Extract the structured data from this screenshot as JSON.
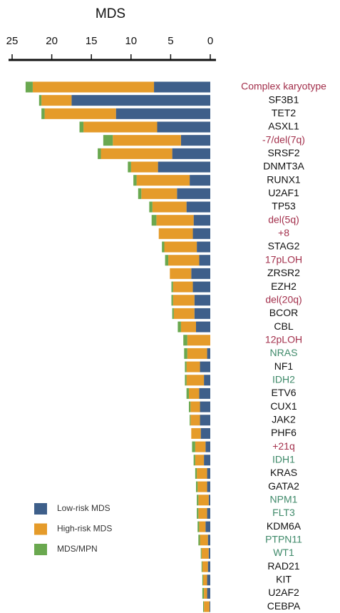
{
  "chart_data": {
    "type": "stacked_barh",
    "title": "MDS",
    "categories": [
      "Complex karyotype",
      "SF3B1",
      "TET2",
      "ASXL1",
      "-7/del(7q)",
      "SRSF2",
      "DNMT3A",
      "RUNX1",
      "U2AF1",
      "TP53",
      "del(5q)",
      "+8",
      "STAG2",
      "17pLOH",
      "ZRSR2",
      "EZH2",
      "del(20q)",
      "BCOR",
      "CBL",
      "12pLOH",
      "NRAS",
      "NF1",
      "IDH2",
      "ETV6",
      "CUX1",
      "JAK2",
      "PHF6",
      "+21q",
      "IDH1",
      "KRAS",
      "GATA2",
      "NPM1",
      "FLT3",
      "KDM6A",
      "PTPN11",
      "WT1",
      "RAD21",
      "KIT",
      "U2AF2",
      "CEBPA"
    ],
    "label_colors": [
      "#a3304c",
      "#111111",
      "#111111",
      "#111111",
      "#a3304c",
      "#111111",
      "#111111",
      "#111111",
      "#111111",
      "#111111",
      "#a3304c",
      "#a3304c",
      "#111111",
      "#a3304c",
      "#111111",
      "#111111",
      "#a3304c",
      "#111111",
      "#111111",
      "#a3304c",
      "#3f8a6a",
      "#111111",
      "#3f8a6a",
      "#111111",
      "#111111",
      "#111111",
      "#111111",
      "#a3304c",
      "#3f8a6a",
      "#111111",
      "#111111",
      "#3f8a6a",
      "#3f8a6a",
      "#111111",
      "#3f8a6a",
      "#3f8a6a",
      "#111111",
      "#111111",
      "#111111",
      "#111111"
    ],
    "series": [
      {
        "name": "Low-risk MDS",
        "color": "#3e5f8a",
        "values": [
          7.1,
          17.5,
          11.9,
          6.7,
          3.7,
          4.8,
          6.6,
          2.6,
          4.2,
          3.0,
          2.1,
          2.2,
          1.7,
          1.4,
          2.4,
          2.2,
          2.0,
          2.0,
          1.8,
          0,
          0.4,
          1.3,
          0.8,
          1.4,
          1.3,
          1.3,
          1.2,
          0.6,
          0.8,
          0.4,
          0.4,
          0.2,
          0.4,
          0.6,
          0.3,
          0.2,
          0.3,
          0.4,
          0.4,
          0.1
        ]
      },
      {
        "name": "High-risk MDS",
        "color": "#e59b2a",
        "values": [
          15.3,
          3.8,
          9.0,
          9.3,
          8.6,
          9.0,
          3.4,
          6.7,
          4.5,
          4.3,
          4.7,
          4.3,
          4.1,
          3.9,
          2.7,
          2.5,
          2.7,
          2.6,
          1.9,
          2.9,
          2.5,
          1.7,
          2.2,
          1.3,
          1.2,
          1.2,
          1.2,
          1.3,
          1.1,
          1.3,
          1.2,
          1.3,
          1.1,
          0.8,
          1.0,
          0.9,
          0.7,
          0.5,
          0.4,
          0.7
        ]
      },
      {
        "name": "MDS/MPN",
        "color": "#6aa84f",
        "values": [
          0.9,
          0.3,
          0.4,
          0.5,
          1.2,
          0.4,
          0.4,
          0.4,
          0.4,
          0.4,
          0.6,
          0,
          0.3,
          0.4,
          0,
          0.2,
          0.2,
          0.2,
          0.4,
          0.5,
          0.4,
          0.2,
          0.2,
          0.3,
          0.2,
          0.1,
          0,
          0.4,
          0.2,
          0.2,
          0.2,
          0.2,
          0.2,
          0.2,
          0.2,
          0.1,
          0.1,
          0.1,
          0.2,
          0.1
        ]
      }
    ],
    "xlim": [
      25,
      0
    ],
    "xticks": [
      25,
      20,
      15,
      10,
      5,
      0
    ]
  }
}
